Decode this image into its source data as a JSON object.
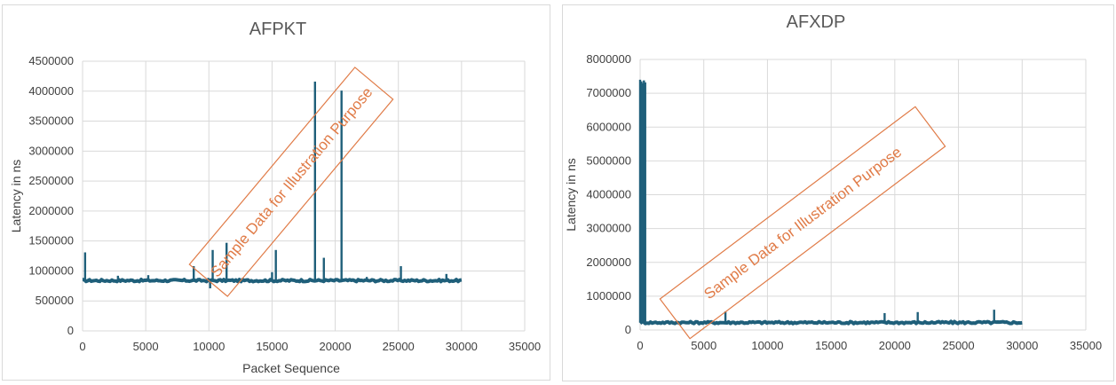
{
  "chart_data": [
    {
      "type": "line",
      "title": "AFPKT",
      "xlabel": "Packet Sequence",
      "ylabel": "Latency in ns",
      "xlim": [
        0,
        35000
      ],
      "ylim": [
        0,
        4500000
      ],
      "xticks": [
        0,
        5000,
        10000,
        15000,
        20000,
        25000,
        30000,
        35000
      ],
      "yticks": [
        0,
        500000,
        1000000,
        1500000,
        2000000,
        2500000,
        3000000,
        3500000,
        4000000,
        4500000
      ],
      "xtick_labels": [
        "0",
        "5000",
        "10000",
        "15000",
        "20000",
        "25000",
        "30000",
        "35000"
      ],
      "ytick_labels": [
        "0",
        "500000",
        "1000000",
        "1500000",
        "2000000",
        "2500000",
        "3000000",
        "3500000",
        "4000000",
        "4500000"
      ],
      "grid": true,
      "legend": "none",
      "watermark": "Sample Data for Illustration Purpose",
      "series": [
        {
          "color": "#1f5f7a",
          "baseline": 840000,
          "x_range": [
            0,
            30000
          ],
          "spikes": [
            {
              "x": 200,
              "y": 1310000
            },
            {
              "x": 2800,
              "y": 920000
            },
            {
              "x": 5200,
              "y": 930000
            },
            {
              "x": 8800,
              "y": 1080000
            },
            {
              "x": 10100,
              "y": 710000
            },
            {
              "x": 10300,
              "y": 1350000
            },
            {
              "x": 11400,
              "y": 1470000
            },
            {
              "x": 15000,
              "y": 980000
            },
            {
              "x": 15300,
              "y": 1350000
            },
            {
              "x": 18400,
              "y": 4160000
            },
            {
              "x": 19100,
              "y": 1220000
            },
            {
              "x": 20500,
              "y": 4010000
            },
            {
              "x": 22500,
              "y": 900000
            },
            {
              "x": 25200,
              "y": 1080000
            },
            {
              "x": 28800,
              "y": 950000
            }
          ]
        }
      ]
    },
    {
      "type": "line",
      "title": "AFXDP",
      "xlabel": "",
      "ylabel": "Latency in ns",
      "xlim": [
        0,
        35000
      ],
      "ylim": [
        0,
        8000000
      ],
      "xticks": [
        0,
        5000,
        10000,
        15000,
        20000,
        25000,
        30000,
        35000
      ],
      "yticks": [
        0,
        1000000,
        2000000,
        3000000,
        4000000,
        5000000,
        6000000,
        7000000,
        8000000
      ],
      "xtick_labels": [
        "0",
        "5000",
        "10000",
        "15000",
        "20000",
        "25000",
        "30000",
        "35000"
      ],
      "ytick_labels": [
        "0",
        "1000000",
        "2000000",
        "3000000",
        "4000000",
        "5000000",
        "6000000",
        "7000000",
        "8000000"
      ],
      "grid": true,
      "legend": "none",
      "watermark": "Sample Data for Illustration Purpose",
      "series": [
        {
          "color": "#1f5f7a",
          "baseline": 220000,
          "x_range": [
            0,
            30000
          ],
          "spikes": [
            {
              "x": 0,
              "y": 7400000
            },
            {
              "x": 100,
              "y": 7350000
            },
            {
              "x": 200,
              "y": 7300000
            },
            {
              "x": 300,
              "y": 7380000
            },
            {
              "x": 400,
              "y": 7320000
            },
            {
              "x": 6700,
              "y": 550000
            },
            {
              "x": 19200,
              "y": 500000
            },
            {
              "x": 21800,
              "y": 530000
            },
            {
              "x": 27800,
              "y": 600000
            }
          ]
        }
      ]
    }
  ]
}
